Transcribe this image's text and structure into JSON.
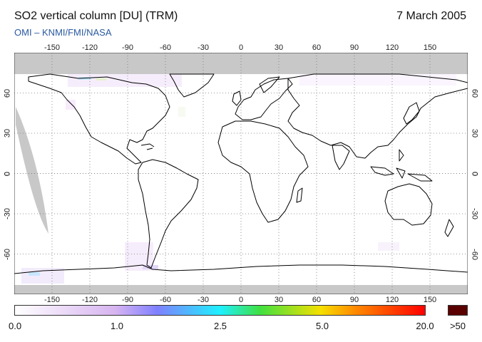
{
  "header": {
    "title": "SO2 vertical column [DU] (TRM)",
    "date": "7 March 2005",
    "subtitle": "OMI  –  KNMI/FMI/NASA"
  },
  "map": {
    "projection": "equirectangular",
    "lon_range": [
      -180,
      180
    ],
    "lat_range": [
      -90,
      90
    ],
    "lon_ticks": [
      "-150",
      "-120",
      "-90",
      "-60",
      "-30",
      "0",
      "30",
      "60",
      "90",
      "120",
      "150"
    ],
    "lat_ticks": [
      "60",
      "30",
      "0",
      "-30",
      "-60"
    ],
    "no_data_color": "#c8c8c8",
    "coastline_color": "#000000",
    "gridline": "dotted"
  },
  "colorbar": {
    "labels": [
      "0.0",
      "1.0",
      "2.5",
      "5.0",
      "20.0",
      ">50"
    ],
    "stops": [
      {
        "value": "0.0",
        "color": "#ffffff"
      },
      {
        "value": "1.0",
        "color": "#d7b4f0"
      },
      {
        "value": "1.6",
        "color": "#7f80ff"
      },
      {
        "value": "2.5",
        "color": "#1ef0ff"
      },
      {
        "value": "3.5",
        "color": "#40e040"
      },
      {
        "value": "5.0",
        "color": "#f5e000"
      },
      {
        "value": "10.0",
        "color": "#ff8a00"
      },
      {
        "value": "20.0",
        "color": "#ff0000"
      }
    ],
    "overflow_color": "#5a0000"
  }
}
